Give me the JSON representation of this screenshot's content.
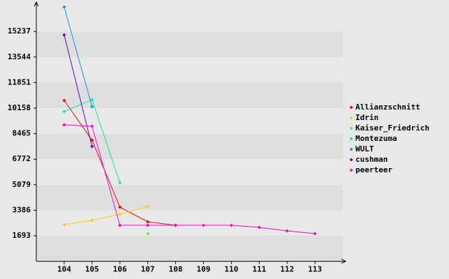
{
  "chart_data": {
    "type": "line",
    "x": [
      104,
      105,
      106,
      107,
      108,
      109,
      110,
      111,
      112,
      113
    ],
    "xlim": [
      103,
      114
    ],
    "xticks": [
      104,
      105,
      106,
      107,
      108,
      109,
      110,
      111,
      112,
      113
    ],
    "ylim": [
      0,
      16930
    ],
    "yticks": [
      1693,
      3386,
      5079,
      6772,
      8465,
      10158,
      11851,
      13544,
      15237
    ],
    "grid": true,
    "legend": "right",
    "series": [
      {
        "name": "Allianzschnitt",
        "color": "#ff0000",
        "values": [
          10667,
          8030,
          3590,
          2618,
          2387,
          null,
          null,
          null,
          null,
          null
        ]
      },
      {
        "name": "Idrin",
        "color": "#ffcc00",
        "values": [
          2433,
          2711,
          3127,
          3636,
          null,
          null,
          null,
          null,
          null,
          null
        ]
      },
      {
        "name": "Kaiser_Friedrich",
        "color": "#66ee22",
        "values": [
          null,
          null,
          null,
          1832,
          null,
          null,
          null,
          null,
          null,
          null
        ]
      },
      {
        "name": "Montezuma",
        "color": "#00ee99",
        "values": [
          9927,
          10713,
          5208,
          null,
          null,
          null,
          null,
          null,
          null,
          null
        ]
      },
      {
        "name": "WULT",
        "color": "#0099ee",
        "values": [
          16865,
          10250,
          null,
          null,
          null,
          null,
          null,
          null,
          null,
          null
        ]
      },
      {
        "name": "cushman",
        "color": "#6600cc",
        "values": [
          15015,
          7614,
          null,
          null,
          null,
          null,
          null,
          null,
          null,
          null
        ]
      },
      {
        "name": "peerteer",
        "color": "#ff00cc",
        "values": [
          9048,
          8955,
          2387,
          2387,
          2387,
          2387,
          2387,
          2248,
          2017,
          1832
        ]
      }
    ]
  }
}
